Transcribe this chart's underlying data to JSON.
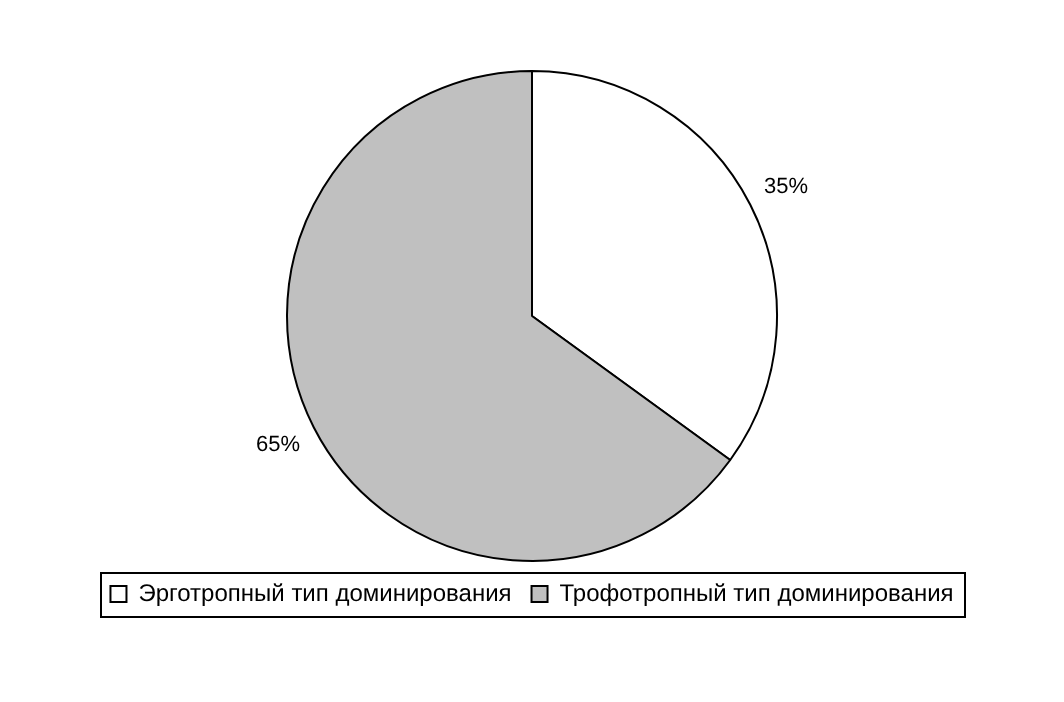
{
  "chart_data": {
    "type": "pie",
    "categories": [
      "Эрготропный тип доминирования",
      "Трофотропный тип доминирования"
    ],
    "values": [
      35,
      65
    ],
    "colors": [
      "#ffffff",
      "#c0c0c0"
    ],
    "value_labels": [
      "35%",
      "65%"
    ],
    "legend": "bottom"
  }
}
